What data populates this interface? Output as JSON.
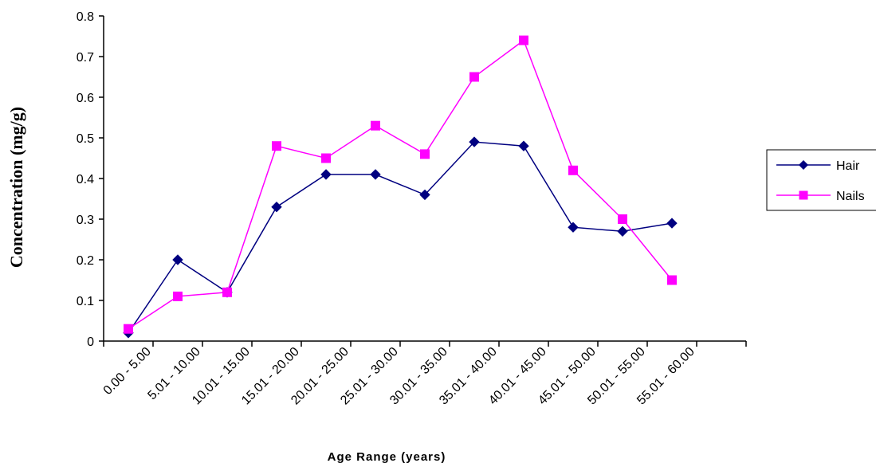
{
  "chart_data": {
    "type": "line",
    "title": "",
    "xlabel": "Age Range (years)",
    "ylabel": "Concentration (mg/g)",
    "ylim": [
      0,
      0.8
    ],
    "yticks": [
      "0",
      "0.1",
      "0.2",
      "0.3",
      "0.4",
      "0.5",
      "0.6",
      "0.7",
      "0.8"
    ],
    "categories": [
      "0.00 - 5.00",
      "5.01 - 10.00",
      "10.01 - 15.00",
      "15.01 - 20.00",
      "20.01 - 25.00",
      "25.01 - 30.00",
      "30.01 - 35.00",
      "35.01 - 40.00",
      "40.01 - 45.00",
      "45.01 - 50.00",
      "50.01 - 55.00",
      "55.01 - 60.00"
    ],
    "series": [
      {
        "name": "Hair",
        "color": "#000080",
        "marker": "diamond",
        "values": [
          0.02,
          0.2,
          0.12,
          0.33,
          0.41,
          0.41,
          0.36,
          0.49,
          0.48,
          0.28,
          0.27,
          0.29
        ]
      },
      {
        "name": "Nails",
        "color": "#FF00FF",
        "marker": "square",
        "values": [
          0.03,
          0.11,
          0.12,
          0.48,
          0.45,
          0.53,
          0.46,
          0.65,
          0.74,
          0.42,
          0.3,
          0.15
        ]
      }
    ],
    "grid": false,
    "legend": "right"
  }
}
